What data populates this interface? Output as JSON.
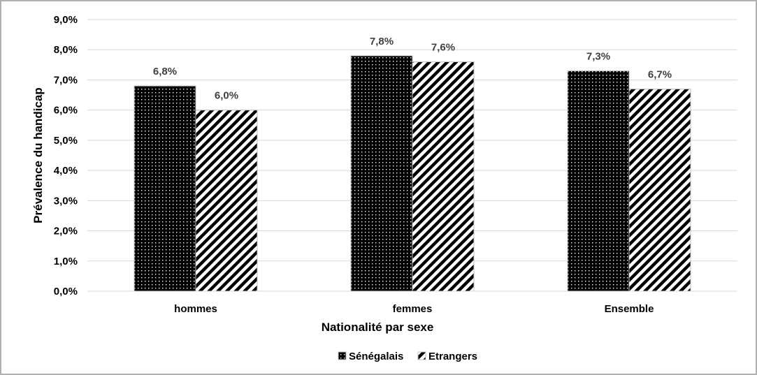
{
  "chart_data": {
    "type": "bar",
    "title": "",
    "xlabel": "Nationalité par sexe",
    "ylabel": "Prévalence du handicap",
    "categories": [
      "hommes",
      "femmes",
      "Ensemble"
    ],
    "series": [
      {
        "name": "Sénégalais",
        "values": [
          6.8,
          7.8,
          7.3
        ],
        "labels": [
          "6,8%",
          "7,8%",
          "7,3%"
        ],
        "pattern": "dots",
        "color": "#000000"
      },
      {
        "name": "Etrangers",
        "values": [
          6.0,
          7.6,
          6.7
        ],
        "labels": [
          "6,0%",
          "7,6%",
          "6,7%"
        ],
        "pattern": "diagonal-stripes",
        "color": "#000000"
      }
    ],
    "ylim": [
      0,
      9
    ],
    "yticks": [
      0,
      1,
      2,
      3,
      4,
      5,
      6,
      7,
      8,
      9
    ],
    "ytick_labels": [
      "0,0%",
      "1,0%",
      "2,0%",
      "3,0%",
      "4,0%",
      "5,0%",
      "6,0%",
      "7,0%",
      "8,0%",
      "9,0%"
    ],
    "grid": true,
    "legend_position": "bottom"
  }
}
